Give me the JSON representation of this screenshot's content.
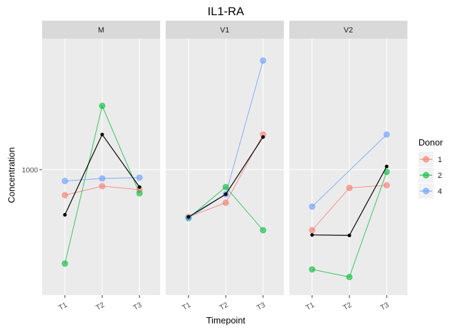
{
  "chart_data": {
    "type": "line",
    "title": "IL1-RA",
    "xlabel": "Timepoint",
    "ylabel": "Concentration",
    "y_scale": "log",
    "y_tick_labels": [
      {
        "value": 1000,
        "label": "1000"
      }
    ],
    "ylim": [
      450,
      2300
    ],
    "categories": [
      "T1",
      "T2",
      "T3"
    ],
    "legend": {
      "title": "Donor",
      "position": "right",
      "entries": [
        {
          "label": "1",
          "color": "#F8766D"
        },
        {
          "label": "2",
          "color": "#00BA38"
        },
        {
          "label": "4",
          "color": "#619CFF"
        }
      ]
    },
    "mean_color": "#000000",
    "facets": [
      {
        "label": "M",
        "series": [
          {
            "donor": "1",
            "values": [
              850,
              900,
              880
            ]
          },
          {
            "donor": "2",
            "values": [
              550,
              1500,
              860
            ]
          },
          {
            "donor": "4",
            "values": [
              930,
              945,
              950
            ]
          }
        ],
        "mean": [
          750,
          1250,
          895
        ]
      },
      {
        "label": "V1",
        "series": [
          {
            "donor": "1",
            "values": [
              740,
              810,
              1250
            ]
          },
          {
            "donor": "2",
            "values": [
              735,
              895,
              680
            ]
          },
          {
            "donor": "4",
            "values": [
              735,
              855,
              2000
            ]
          }
        ],
        "mean": [
          740,
          855,
          1230
        ]
      },
      {
        "label": "V2",
        "series": [
          {
            "donor": "1",
            "values": [
              680,
              890,
              905
            ]
          },
          {
            "donor": "2",
            "values": [
              530,
              505,
              985
            ]
          },
          {
            "donor": "4",
            "values": [
              790,
              null,
              1250
            ]
          }
        ],
        "mean": [
          660,
          658,
          1020
        ]
      }
    ]
  }
}
